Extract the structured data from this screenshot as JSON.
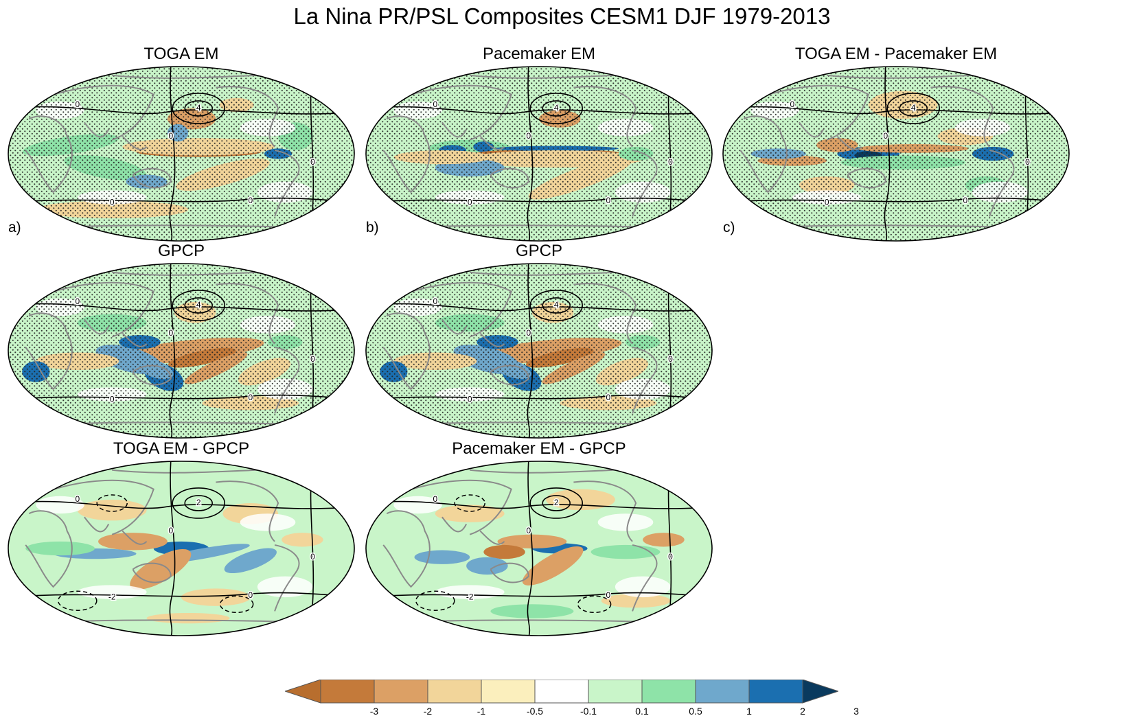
{
  "title": "La Nina PR/PSL Composites CESM1 DJF 1979-2013",
  "colors": {
    "dry3": "#c47a3a",
    "dry2": "#dca065",
    "dry1": "#f2d59a",
    "dry05": "#fbefbd",
    "neutral": "#ffffff",
    "wet01": "#c9f5c9",
    "wet05": "#8ee3a8",
    "wet1": "#6fa8cc",
    "wet2": "#1b6fb0",
    "wet3": "#0a3a5e"
  },
  "panels": [
    {
      "id": "a",
      "title": "TOGA EM",
      "letter": "a)",
      "stippled": true,
      "pattern": "toga"
    },
    {
      "id": "b",
      "title": "Pacemaker EM",
      "letter": "b)",
      "stippled": true,
      "pattern": "pace"
    },
    {
      "id": "c",
      "title": "TOGA EM - Pacemaker EM",
      "letter": "c)",
      "stippled": true,
      "pattern": "diff"
    },
    {
      "id": "d",
      "title": "GPCP",
      "letter": "",
      "stippled": true,
      "pattern": "gpcp"
    },
    {
      "id": "e",
      "title": "GPCP",
      "letter": "",
      "stippled": true,
      "pattern": "gpcp"
    },
    {
      "id": "f",
      "title": "TOGA EM - GPCP",
      "letter": "",
      "stippled": false,
      "pattern": "bias1"
    },
    {
      "id": "g",
      "title": "Pacemaker EM - GPCP",
      "letter": "",
      "stippled": false,
      "pattern": "bias2"
    }
  ],
  "contour_labels": [
    "0",
    "4",
    "-2",
    "2"
  ],
  "colorbar": {
    "labels": [
      "-3",
      "-2",
      "-1",
      "-0.5",
      "-0.1",
      "0.1",
      "0.5",
      "1",
      "2",
      "3"
    ],
    "colors": [
      "#c47a3a",
      "#dca065",
      "#f2d59a",
      "#fbefbd",
      "#ffffff",
      "#c9f5c9",
      "#8ee3a8",
      "#6fa8cc",
      "#1b6fb0"
    ],
    "under": "#b86e2e",
    "over": "#0a3a5e"
  }
}
